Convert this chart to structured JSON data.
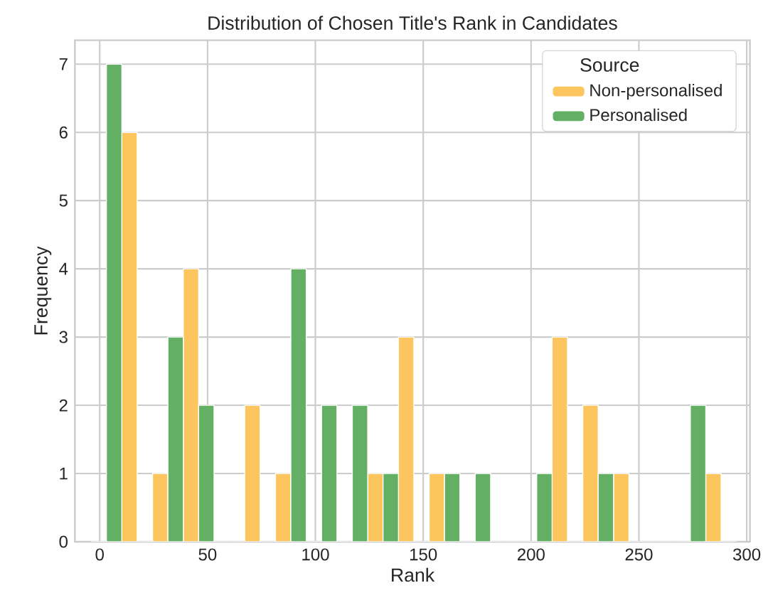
{
  "chart_data": {
    "type": "histogram",
    "title": "Distribution of Chosen Title's Rank in Candidates",
    "xlabel": "Rank",
    "ylabel": "Frequency",
    "legend_title": "Source",
    "bins": [
      -4,
      10.25,
      24.5,
      38.75,
      53,
      67.25,
      81.5,
      95.75,
      110,
      124.25,
      138.5,
      152.75,
      167,
      181.25,
      195.5,
      209.75,
      224,
      238.25,
      252.5,
      266.75,
      281,
      295.25
    ],
    "series": [
      {
        "name": "Non-personalised",
        "color": "#fdc55e",
        "values": [
          0,
          6,
          1,
          4,
          0,
          2,
          1,
          0,
          0,
          1,
          3,
          1,
          0,
          0,
          0,
          3,
          2,
          1,
          0,
          0,
          1
        ]
      },
      {
        "name": "Personalised",
        "color": "#63af63",
        "values": [
          7,
          0,
          3,
          2,
          0,
          0,
          4,
          2,
          2,
          1,
          0,
          1,
          1,
          0,
          1,
          0,
          1,
          0,
          0,
          2,
          0
        ]
      }
    ],
    "xlim": [
      -11.5,
      301.5
    ],
    "ylim": [
      0,
      7.35
    ],
    "xticks": [
      0,
      50,
      100,
      150,
      200,
      250,
      300
    ],
    "yticks": [
      0,
      1,
      2,
      3,
      4,
      5,
      6,
      7
    ],
    "grid": true,
    "legend": "top right"
  }
}
